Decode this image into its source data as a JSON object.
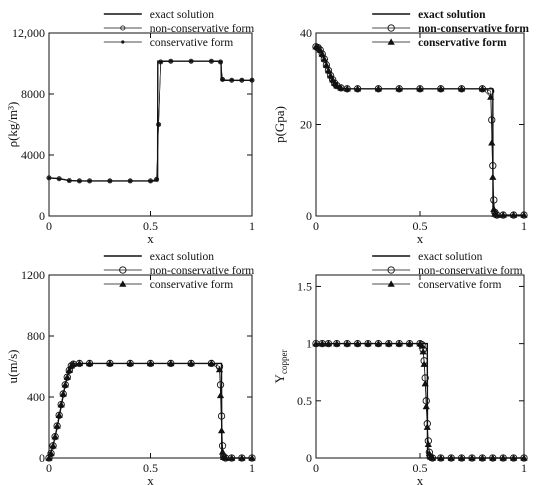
{
  "chart_data": [
    {
      "type": "line",
      "xlabel": "x",
      "ylabel": "ρ(kg/m³)",
      "xlim": [
        0,
        1
      ],
      "ylim": [
        0,
        12000
      ],
      "xticks": [
        0,
        0.5,
        1
      ],
      "xtick_labels": [
        "0",
        "0.5",
        "1"
      ],
      "yticks": [
        0,
        4000,
        8000,
        12000
      ],
      "ytick_labels": [
        "0",
        "4000",
        "8000",
        "12,000"
      ],
      "legend": {
        "position": "top-right",
        "bold": false
      },
      "series": [
        {
          "name": "exact solution",
          "marker": "none",
          "x": [
            0,
            0.05,
            0.1,
            0.15,
            0.2,
            0.3,
            0.4,
            0.5,
            0.535,
            0.536,
            0.6,
            0.7,
            0.8,
            0.848,
            0.849,
            0.9,
            0.95,
            1.0
          ],
          "y": [
            2500,
            2450,
            2320,
            2300,
            2300,
            2300,
            2300,
            2300,
            2300,
            10150,
            10150,
            10150,
            10150,
            10150,
            8900,
            8900,
            8900,
            8900
          ]
        },
        {
          "name": "non-conservative form",
          "marker": "circle-small",
          "x": [
            0,
            0.05,
            0.1,
            0.15,
            0.2,
            0.3,
            0.4,
            0.5,
            0.53,
            0.54,
            0.55,
            0.6,
            0.7,
            0.8,
            0.845,
            0.855,
            0.9,
            0.95,
            1.0
          ],
          "y": [
            2500,
            2440,
            2320,
            2300,
            2300,
            2300,
            2300,
            2300,
            2400,
            6000,
            10100,
            10150,
            10150,
            10150,
            10100,
            8950,
            8900,
            8900,
            8900
          ]
        },
        {
          "name": "conservative form",
          "marker": "dot",
          "x": [
            0,
            0.05,
            0.1,
            0.15,
            0.2,
            0.3,
            0.4,
            0.5,
            0.53,
            0.54,
            0.55,
            0.6,
            0.7,
            0.8,
            0.845,
            0.855,
            0.9,
            0.95,
            1.0
          ],
          "y": [
            2500,
            2440,
            2320,
            2300,
            2300,
            2300,
            2300,
            2300,
            2400,
            6000,
            10100,
            10150,
            10150,
            10150,
            10100,
            8950,
            8900,
            8900,
            8900
          ]
        }
      ]
    },
    {
      "type": "line",
      "xlabel": "x",
      "ylabel": "p(Gpa)",
      "xlim": [
        0,
        1
      ],
      "ylim": [
        0,
        40
      ],
      "xticks": [
        0,
        0.5,
        1
      ],
      "xtick_labels": [
        "0",
        "0.5",
        "1"
      ],
      "yticks": [
        0,
        20,
        40
      ],
      "ytick_labels": [
        "0",
        "20",
        "40"
      ],
      "legend": {
        "position": "top-right",
        "bold": true
      },
      "series": [
        {
          "name": "exact solution",
          "marker": "none",
          "x": [
            0,
            0.02,
            0.04,
            0.06,
            0.08,
            0.1,
            0.12,
            0.15,
            0.3,
            0.5,
            0.7,
            0.85,
            0.851,
            1.0
          ],
          "y": [
            37,
            36.5,
            34.5,
            32,
            30,
            28.7,
            28,
            27.8,
            27.8,
            27.8,
            27.8,
            27.8,
            0.2,
            0.2
          ]
        },
        {
          "name": "non-conservative form",
          "marker": "circle",
          "x": [
            0,
            0.01,
            0.02,
            0.03,
            0.04,
            0.05,
            0.06,
            0.07,
            0.08,
            0.09,
            0.1,
            0.12,
            0.15,
            0.2,
            0.3,
            0.4,
            0.5,
            0.6,
            0.7,
            0.8,
            0.84,
            0.845,
            0.85,
            0.855,
            0.86,
            0.87,
            0.9,
            0.95,
            1.0
          ],
          "y": [
            37,
            36.8,
            36.3,
            35.4,
            34.3,
            33,
            31.8,
            30.7,
            29.8,
            29,
            28.5,
            28,
            27.8,
            27.8,
            27.8,
            27.8,
            27.8,
            27.8,
            27.8,
            27.8,
            27.3,
            21,
            11,
            3.5,
            0.8,
            0.2,
            0.2,
            0.2,
            0.2
          ]
        },
        {
          "name": "conservative form",
          "marker": "triangle",
          "x": [
            0,
            0.01,
            0.02,
            0.03,
            0.04,
            0.05,
            0.06,
            0.07,
            0.08,
            0.09,
            0.1,
            0.12,
            0.15,
            0.2,
            0.3,
            0.4,
            0.5,
            0.6,
            0.7,
            0.8,
            0.84,
            0.845,
            0.85,
            0.855,
            0.86,
            0.87,
            0.9,
            0.95,
            1.0
          ],
          "y": [
            37,
            36.8,
            36.3,
            35.4,
            34.3,
            33,
            31.8,
            30.7,
            29.8,
            29,
            28.5,
            28,
            27.8,
            27.8,
            27.8,
            27.8,
            27.8,
            27.8,
            27.8,
            27.8,
            26,
            16,
            8.5,
            1.5,
            0.4,
            0.2,
            0.2,
            0.2,
            0.2
          ]
        }
      ]
    },
    {
      "type": "line",
      "xlabel": "x",
      "ylabel": "u(m/s)",
      "xlim": [
        0,
        1
      ],
      "ylim": [
        0,
        1200
      ],
      "xticks": [
        0,
        0.5,
        1
      ],
      "xtick_labels": [
        "0",
        "0.5",
        "1"
      ],
      "yticks": [
        0,
        400,
        800,
        1200
      ],
      "ytick_labels": [
        "0",
        "400",
        "800",
        "1200"
      ],
      "legend": {
        "position": "top-right",
        "bold": false
      },
      "series": [
        {
          "name": "exact solution",
          "marker": "none",
          "x": [
            0,
            0.02,
            0.04,
            0.06,
            0.08,
            0.1,
            0.12,
            0.15,
            0.3,
            0.5,
            0.7,
            0.85,
            0.851,
            1.0
          ],
          "y": [
            0,
            80,
            200,
            340,
            480,
            580,
            615,
            620,
            620,
            620,
            620,
            620,
            0,
            0
          ]
        },
        {
          "name": "non-conservative form",
          "marker": "circle",
          "x": [
            0,
            0.01,
            0.02,
            0.03,
            0.04,
            0.05,
            0.06,
            0.07,
            0.08,
            0.09,
            0.1,
            0.11,
            0.12,
            0.15,
            0.2,
            0.3,
            0.4,
            0.5,
            0.6,
            0.7,
            0.8,
            0.84,
            0.845,
            0.85,
            0.855,
            0.86,
            0.87,
            0.9,
            0.95,
            1.0
          ],
          "y": [
            0,
            30,
            80,
            140,
            210,
            280,
            350,
            420,
            480,
            530,
            575,
            605,
            615,
            620,
            620,
            620,
            620,
            620,
            620,
            620,
            620,
            600,
            480,
            275,
            80,
            10,
            0,
            0,
            0,
            0
          ]
        },
        {
          "name": "conservative form",
          "marker": "triangle",
          "x": [
            0,
            0.01,
            0.02,
            0.03,
            0.04,
            0.05,
            0.06,
            0.07,
            0.08,
            0.09,
            0.1,
            0.11,
            0.12,
            0.15,
            0.2,
            0.3,
            0.4,
            0.5,
            0.6,
            0.7,
            0.8,
            0.84,
            0.845,
            0.85,
            0.855,
            0.86,
            0.87,
            0.9,
            0.95,
            1.0
          ],
          "y": [
            0,
            30,
            80,
            140,
            210,
            280,
            350,
            420,
            480,
            530,
            575,
            605,
            615,
            620,
            620,
            620,
            620,
            620,
            620,
            620,
            620,
            580,
            410,
            180,
            40,
            5,
            0,
            0,
            0,
            0
          ]
        }
      ]
    },
    {
      "type": "line",
      "xlabel": "x",
      "ylabel": "Y",
      "ylabel_sub": "copper",
      "xlim": [
        0,
        1
      ],
      "ylim": [
        0,
        1.6
      ],
      "xticks": [
        0,
        0.5,
        1
      ],
      "xtick_labels": [
        "0",
        "0.5",
        "1"
      ],
      "yticks": [
        0,
        0.5,
        1,
        1.5
      ],
      "ytick_labels": [
        "0",
        "0.5",
        "1",
        "1.5"
      ],
      "legend": {
        "position": "top-right",
        "bold": false
      },
      "series": [
        {
          "name": "exact solution",
          "marker": "none",
          "x": [
            0,
            0.2,
            0.4,
            0.535,
            0.536,
            0.7,
            1.0
          ],
          "y": [
            1,
            1,
            1,
            1,
            0,
            0,
            0
          ]
        },
        {
          "name": "non-conservative form",
          "marker": "circle",
          "x": [
            0,
            0.03,
            0.06,
            0.1,
            0.15,
            0.2,
            0.25,
            0.3,
            0.35,
            0.4,
            0.45,
            0.5,
            0.51,
            0.515,
            0.52,
            0.525,
            0.53,
            0.535,
            0.54,
            0.545,
            0.55,
            0.56,
            0.6,
            0.65,
            0.7,
            0.75,
            0.8,
            0.85,
            0.9,
            0.95,
            1.0
          ],
          "y": [
            1,
            1,
            1,
            1,
            1,
            1,
            1,
            1,
            1,
            1,
            1,
            1,
            0.99,
            0.95,
            0.85,
            0.7,
            0.5,
            0.3,
            0.15,
            0.05,
            0.01,
            0,
            0,
            0,
            0,
            0,
            0,
            0,
            0,
            0,
            0
          ]
        },
        {
          "name": "conservative form",
          "marker": "triangle",
          "x": [
            0,
            0.03,
            0.06,
            0.1,
            0.15,
            0.2,
            0.25,
            0.3,
            0.35,
            0.4,
            0.45,
            0.5,
            0.51,
            0.515,
            0.52,
            0.525,
            0.53,
            0.535,
            0.54,
            0.545,
            0.55,
            0.56,
            0.6,
            0.65,
            0.7,
            0.75,
            0.8,
            0.85,
            0.9,
            0.95,
            1.0
          ],
          "y": [
            1,
            1,
            1,
            1,
            1,
            1,
            1,
            1,
            1,
            1,
            1,
            1,
            0.98,
            0.93,
            0.82,
            0.65,
            0.45,
            0.27,
            0.12,
            0.04,
            0.01,
            0,
            0,
            0,
            0,
            0,
            0,
            0,
            0,
            0,
            0
          ]
        }
      ]
    }
  ]
}
